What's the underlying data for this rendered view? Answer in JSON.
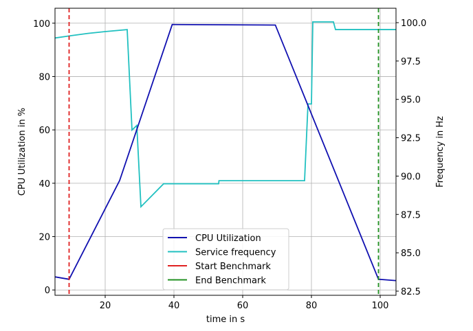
{
  "chart_data": {
    "type": "line",
    "xlabel": "time in s",
    "ylabel": "CPU Utilization in %",
    "y2label": "Frequency in Hz",
    "xlim": [
      5.4,
      104.6
    ],
    "ylim": [
      -2,
      105.6
    ],
    "y2lim": [
      82.23,
      100.94
    ],
    "xticks": [
      20,
      40,
      60,
      80,
      100
    ],
    "yticks": [
      0,
      20,
      40,
      60,
      80,
      100
    ],
    "y2ticks": [
      "82.5",
      "85.0",
      "87.5",
      "90.0",
      "92.5",
      "95.0",
      "97.5",
      "100.0"
    ],
    "grid": true,
    "legend_position": "bottom-center",
    "series": [
      {
        "name": "CPU Utilization",
        "axis": "left",
        "color": "#1010b0",
        "x": [
          5.4,
          9.5,
          24.2,
          39.5,
          69.5,
          99.5,
          104.6
        ],
        "y": [
          4.9,
          4.0,
          41.0,
          99.5,
          99.3,
          4.0,
          3.5
        ]
      },
      {
        "name": "Service frequency",
        "axis": "right",
        "color": "#20c0c0",
        "x": [
          5.4,
          10,
          15,
          20,
          26.4,
          27.8,
          29.2,
          30.4,
          37.0,
          53.0,
          53.1,
          78.0,
          79.0,
          80.0,
          80.4,
          86.4,
          87.0,
          104.6
        ],
        "y": [
          99.0,
          99.15,
          99.3,
          99.42,
          99.55,
          93.0,
          93.3,
          88.0,
          89.5,
          89.5,
          89.7,
          89.7,
          94.7,
          94.7,
          100.05,
          100.05,
          99.55,
          99.55
        ]
      }
    ],
    "vlines": [
      {
        "name": "Start Benchmark",
        "x": 9.5,
        "color": "#e02020"
      },
      {
        "name": "End Benchmark",
        "x": 99.5,
        "color": "#209020"
      }
    ]
  }
}
